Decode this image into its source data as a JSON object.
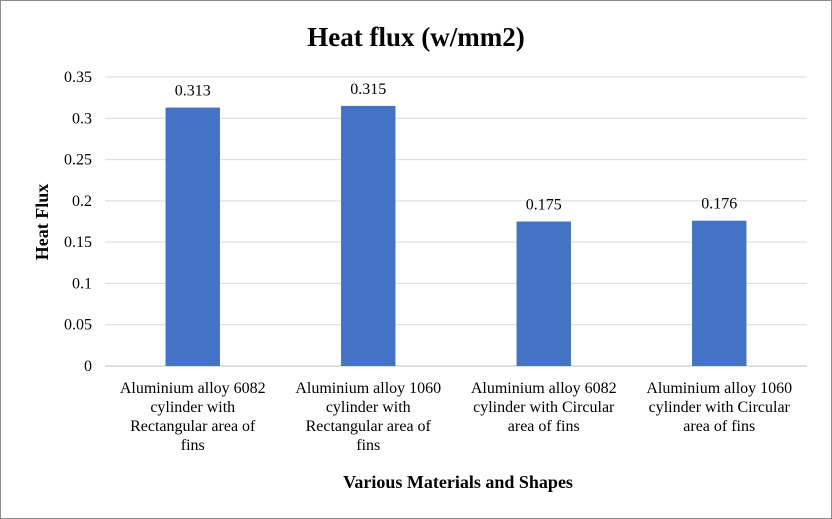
{
  "chart_data": {
    "type": "bar",
    "title": "Heat flux (w/mm2)",
    "xlabel": "Various Materials and Shapes",
    "ylabel": "Heat Flux",
    "ylim": [
      0,
      0.35
    ],
    "ytick_labels": [
      "0",
      "0.05",
      "0.1",
      "0.15",
      "0.2",
      "0.25",
      "0.3",
      "0.35"
    ],
    "grid": true,
    "legend": "none",
    "bar_color": "#4472C4",
    "grid_color": "#D9D9D9",
    "categories": [
      [
        "Aluminium alloy 6082",
        "cylinder with",
        "Rectangular area of",
        "fins"
      ],
      [
        "Aluminium alloy 1060",
        "cylinder with",
        "Rectangular area of",
        "fins"
      ],
      [
        "Aluminium alloy 6082",
        "cylinder with Circular",
        "area of fins"
      ],
      [
        "Aluminium alloy 1060",
        "cylinder with Circular",
        "area of fins"
      ]
    ],
    "values": [
      0.313,
      0.315,
      0.175,
      0.176
    ],
    "data_labels": [
      "0.313",
      "0.315",
      "0.175",
      "0.176"
    ]
  }
}
